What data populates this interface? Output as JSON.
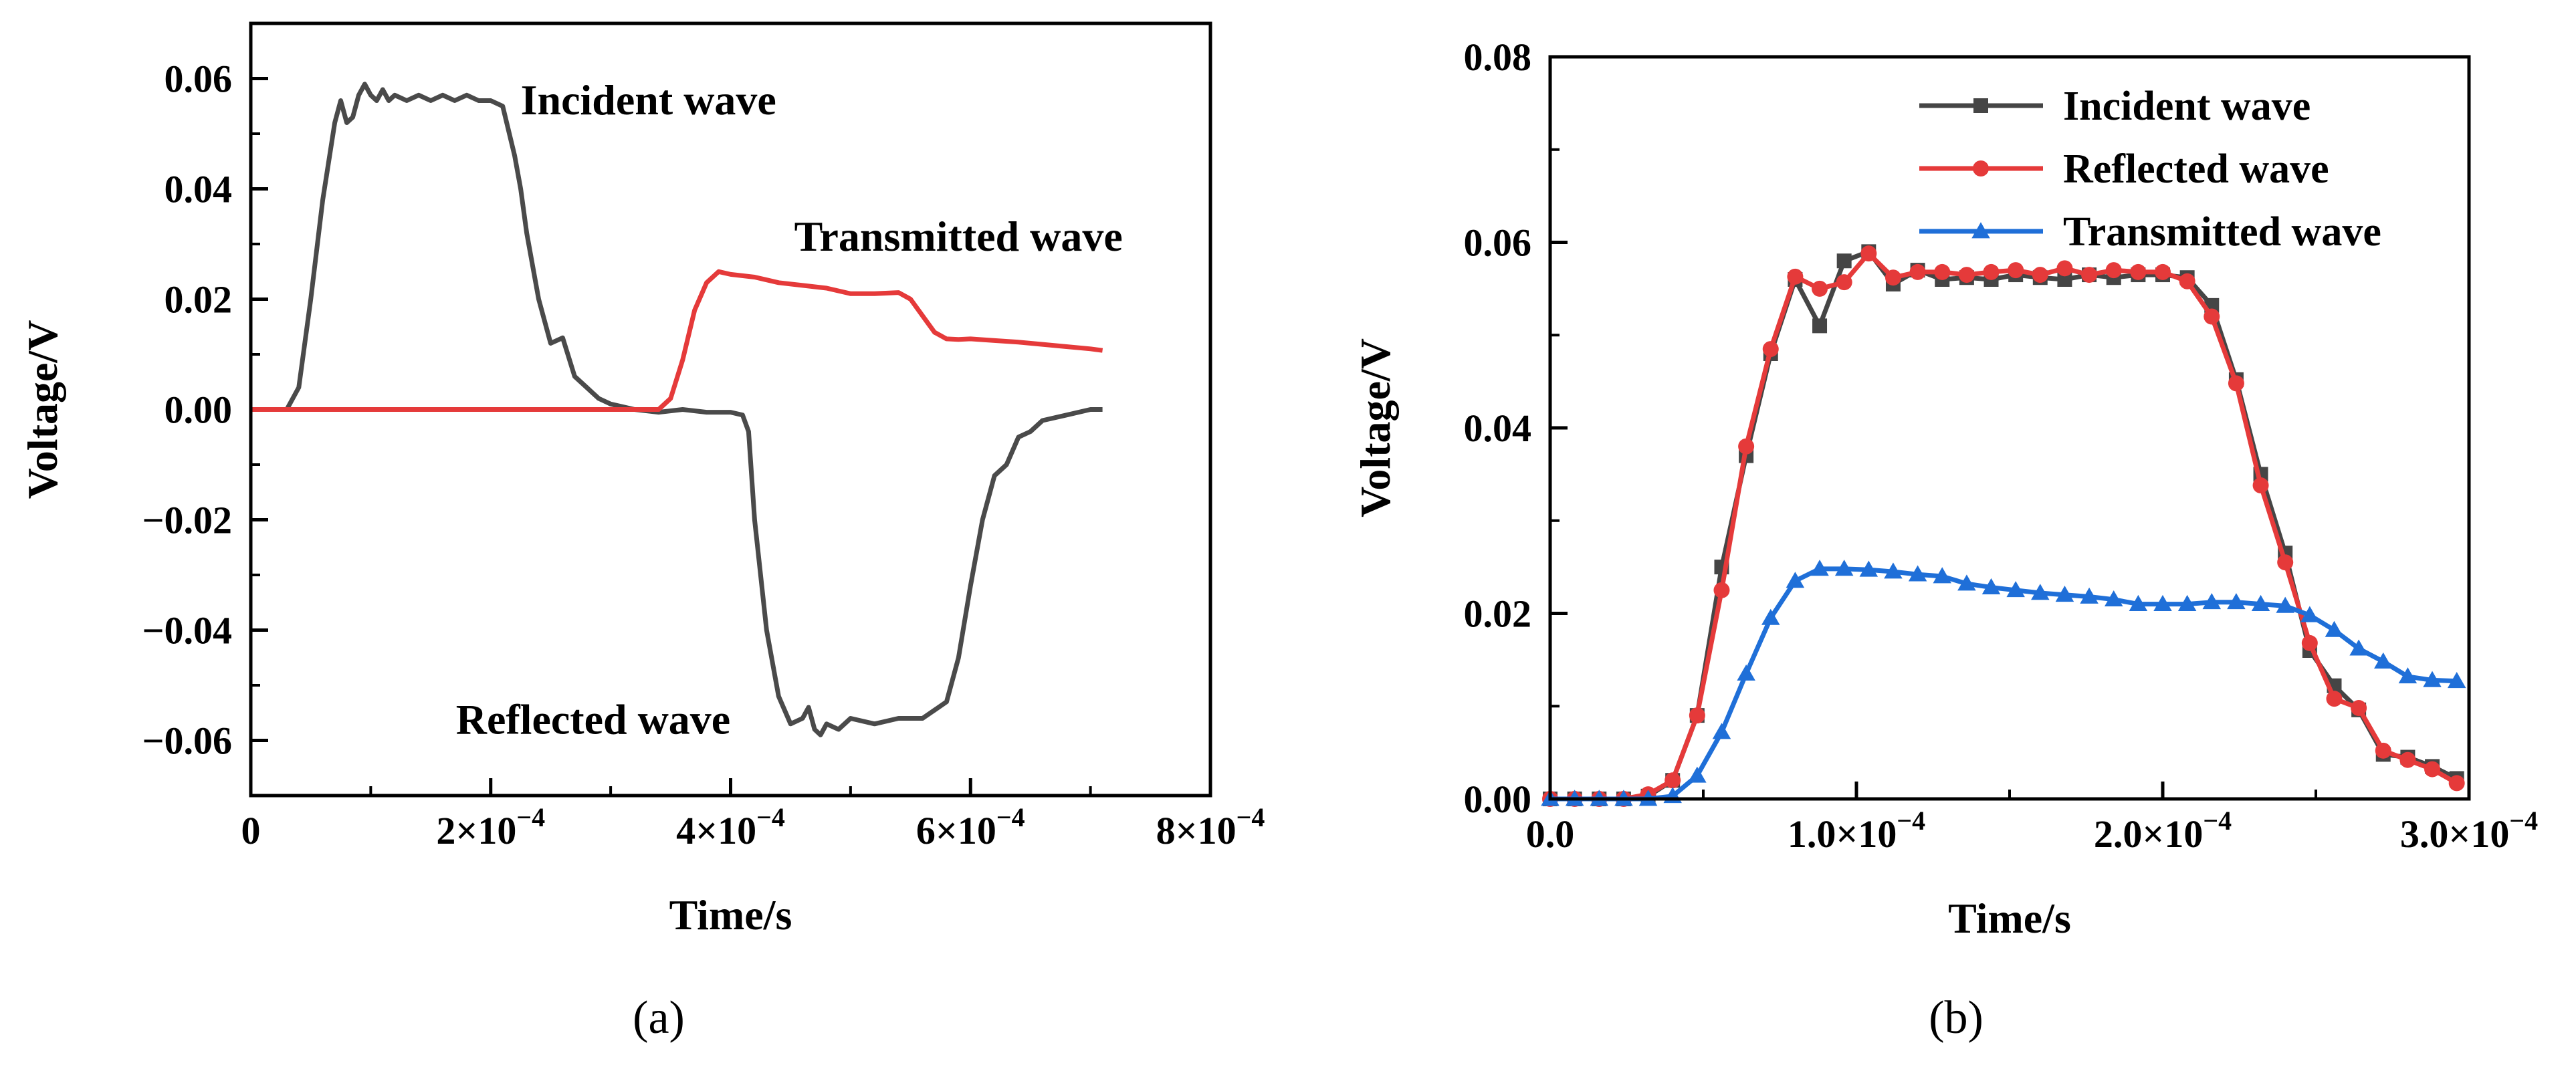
{
  "chart_data": [
    {
      "panel": "(a)",
      "type": "line",
      "xlabel": "Time/s",
      "ylabel": "Voltage/V",
      "xlim": [
        0,
        0.0008
      ],
      "ylim": [
        -0.07,
        0.07
      ],
      "x_ticks": [
        {
          "v": 0,
          "label": "0"
        },
        {
          "v": 0.0002,
          "label": "2×10",
          "exp": "−4"
        },
        {
          "v": 0.0004,
          "label": "4×10",
          "exp": "−4"
        },
        {
          "v": 0.0006,
          "label": "6×10",
          "exp": "−4"
        },
        {
          "v": 0.0008,
          "label": "8×10",
          "exp": "−4"
        }
      ],
      "y_ticks": [
        {
          "v": 0.06,
          "label": "0.06"
        },
        {
          "v": 0.04,
          "label": "0.04"
        },
        {
          "v": 0.02,
          "label": "0.02"
        },
        {
          "v": 0.0,
          "label": "0.00"
        },
        {
          "v": -0.02,
          "label": "−0.02"
        },
        {
          "v": -0.04,
          "label": "−0.04"
        },
        {
          "v": -0.06,
          "label": "−0.06"
        }
      ],
      "series": [
        {
          "name": "Incident wave",
          "color": "#4a4a4a",
          "x": [
            0,
            3e-05,
            4e-05,
            5e-05,
            6e-05,
            7e-05,
            7.5e-05,
            8e-05,
            8.5e-05,
            9e-05,
            9.5e-05,
            0.0001,
            0.000105,
            0.00011,
            0.000115,
            0.00012,
            0.00013,
            0.00014,
            0.00015,
            0.00016,
            0.00017,
            0.00018,
            0.00019,
            0.0002,
            0.00021,
            0.00022,
            0.000225,
            0.00023,
            0.00024,
            0.00025,
            0.00026,
            0.00027,
            0.00028,
            0.00029,
            0.0003,
            0.00031,
            0.00032,
            0.00034,
            0.00036,
            0.00038,
            0.0004,
            0.00041,
            0.000415,
            0.00042,
            0.00043,
            0.00044,
            0.00045,
            0.00046,
            0.000465,
            0.00047,
            0.000475,
            0.00048,
            0.00049,
            0.0005,
            0.00052,
            0.00054,
            0.00056,
            0.00058,
            0.00059,
            0.0006,
            0.00061,
            0.00062,
            0.00063,
            0.00064,
            0.00065,
            0.00066,
            0.00068,
            0.0007,
            0.00071
          ],
          "y": [
            0,
            0,
            0.004,
            0.02,
            0.038,
            0.052,
            0.056,
            0.052,
            0.053,
            0.057,
            0.059,
            0.057,
            0.056,
            0.058,
            0.056,
            0.057,
            0.056,
            0.057,
            0.056,
            0.057,
            0.056,
            0.057,
            0.056,
            0.056,
            0.055,
            0.046,
            0.04,
            0.032,
            0.02,
            0.012,
            0.013,
            0.006,
            0.004,
            0.002,
            0.001,
            0.0005,
            0,
            -0.0005,
            0,
            -0.0005,
            -0.0005,
            -0.001,
            -0.004,
            -0.02,
            -0.04,
            -0.052,
            -0.057,
            -0.056,
            -0.054,
            -0.058,
            -0.059,
            -0.057,
            -0.058,
            -0.056,
            -0.057,
            -0.056,
            -0.056,
            -0.053,
            -0.045,
            -0.032,
            -0.02,
            -0.012,
            -0.01,
            -0.005,
            -0.004,
            -0.002,
            -0.001,
            0,
            0
          ]
        },
        {
          "name": "Transmitted wave",
          "color": "#e53a3a",
          "x": [
            0,
            0.0001,
            0.0002,
            0.0003,
            0.00034,
            0.00035,
            0.00036,
            0.00037,
            0.00038,
            0.00039,
            0.0004,
            0.00042,
            0.00044,
            0.00046,
            0.00048,
            0.0005,
            0.00052,
            0.00054,
            0.00055,
            0.00056,
            0.00057,
            0.00058,
            0.00059,
            0.0006,
            0.00062,
            0.00064,
            0.00066,
            0.00068,
            0.0007,
            0.00071
          ],
          "y": [
            0,
            0,
            0,
            0,
            0,
            0.002,
            0.009,
            0.018,
            0.023,
            0.025,
            0.0245,
            0.024,
            0.023,
            0.0225,
            0.022,
            0.021,
            0.021,
            0.0212,
            0.02,
            0.017,
            0.014,
            0.0128,
            0.0127,
            0.0128,
            0.0125,
            0.0122,
            0.0118,
            0.0114,
            0.011,
            0.0107
          ]
        }
      ],
      "annotations": [
        {
          "text": "Incident wave",
          "x": 0.000225,
          "y": 0.0535
        },
        {
          "text": "Transmitted wave",
          "x": 0.000453,
          "y": 0.0288
        },
        {
          "text": "Reflected wave",
          "x": 0.000171,
          "y": -0.0588
        }
      ]
    },
    {
      "panel": "(b)",
      "type": "line",
      "xlabel": "Time/s",
      "ylabel": "Voltage/V",
      "xlim": [
        0,
        0.0003
      ],
      "ylim": [
        0,
        0.08
      ],
      "x_ticks": [
        {
          "v": 0,
          "label": "0.0"
        },
        {
          "v": 0.0001,
          "label": "1.0×10",
          "exp": "−4"
        },
        {
          "v": 0.0002,
          "label": "2.0×10",
          "exp": "−4"
        },
        {
          "v": 0.0003,
          "label": "3.0×10",
          "exp": "−4"
        }
      ],
      "y_ticks": [
        {
          "v": 0.0,
          "label": "0.00"
        },
        {
          "v": 0.02,
          "label": "0.02"
        },
        {
          "v": 0.04,
          "label": "0.04"
        },
        {
          "v": 0.06,
          "label": "0.06"
        },
        {
          "v": 0.08,
          "label": "0.08"
        }
      ],
      "legend": "top-right",
      "series": [
        {
          "name": "Incident wave",
          "color": "#454545",
          "marker": "square",
          "x": [
            0,
            8e-06,
            1.6e-05,
            2.4e-05,
            3.2e-05,
            4e-05,
            4.8e-05,
            5.6e-05,
            6.4e-05,
            7.2e-05,
            8e-05,
            8.8e-05,
            9.6e-05,
            0.000104,
            0.000112,
            0.00012,
            0.000128,
            0.000136,
            0.000144,
            0.000152,
            0.00016,
            0.000168,
            0.000176,
            0.000184,
            0.000192,
            0.0002,
            0.000208,
            0.000216,
            0.000224,
            0.000232,
            0.00024,
            0.000248,
            0.000256,
            0.000264,
            0.000272,
            0.00028,
            0.000288,
            0.000296
          ],
          "y": [
            0,
            0,
            0,
            0,
            0.0003,
            0.002,
            0.009,
            0.025,
            0.037,
            0.048,
            0.056,
            0.051,
            0.058,
            0.059,
            0.0555,
            0.057,
            0.056,
            0.0562,
            0.056,
            0.0565,
            0.0562,
            0.056,
            0.0565,
            0.0562,
            0.0565,
            0.0565,
            0.0562,
            0.0532,
            0.0452,
            0.035,
            0.0265,
            0.016,
            0.0122,
            0.0096,
            0.0048,
            0.0045,
            0.0035,
            0.0022
          ]
        },
        {
          "name": "Reflected wave",
          "color": "#e53a3a",
          "marker": "circle",
          "x": [
            0,
            8e-06,
            1.6e-05,
            2.4e-05,
            3.2e-05,
            4e-05,
            4.8e-05,
            5.6e-05,
            6.4e-05,
            7.2e-05,
            8e-05,
            8.8e-05,
            9.6e-05,
            0.000104,
            0.000112,
            0.00012,
            0.000128,
            0.000136,
            0.000144,
            0.000152,
            0.00016,
            0.000168,
            0.000176,
            0.000184,
            0.000192,
            0.0002,
            0.000208,
            0.000216,
            0.000224,
            0.000232,
            0.00024,
            0.000248,
            0.000256,
            0.000264,
            0.000272,
            0.00028,
            0.000288,
            0.000296
          ],
          "y": [
            0,
            0,
            0,
            0,
            0.0005,
            0.002,
            0.009,
            0.0225,
            0.038,
            0.0485,
            0.0563,
            0.055,
            0.0557,
            0.0588,
            0.0562,
            0.0568,
            0.0568,
            0.0565,
            0.0568,
            0.057,
            0.0565,
            0.0572,
            0.0565,
            0.057,
            0.0568,
            0.0568,
            0.0558,
            0.052,
            0.0448,
            0.0338,
            0.0255,
            0.0168,
            0.0108,
            0.0098,
            0.0052,
            0.0042,
            0.0032,
            0.0017
          ]
        },
        {
          "name": "Transmitted wave",
          "color": "#1f6fd8",
          "marker": "triangle",
          "x": [
            0,
            8e-06,
            1.6e-05,
            2.4e-05,
            3.2e-05,
            4e-05,
            4.8e-05,
            5.6e-05,
            6.4e-05,
            7.2e-05,
            8e-05,
            8.8e-05,
            9.6e-05,
            0.000104,
            0.000112,
            0.00012,
            0.000128,
            0.000136,
            0.000144,
            0.000152,
            0.00016,
            0.000168,
            0.000176,
            0.000184,
            0.000192,
            0.0002,
            0.000208,
            0.000216,
            0.000224,
            0.000232,
            0.00024,
            0.000248,
            0.000256,
            0.000264,
            0.000272,
            0.00028,
            0.000288,
            0.000296
          ],
          "y": [
            0,
            0,
            0,
            0,
            0,
            0.0003,
            0.0025,
            0.0072,
            0.0135,
            0.0195,
            0.0235,
            0.0248,
            0.0248,
            0.0247,
            0.0245,
            0.0242,
            0.024,
            0.0232,
            0.0228,
            0.0225,
            0.0222,
            0.022,
            0.0218,
            0.0215,
            0.021,
            0.021,
            0.021,
            0.0212,
            0.0212,
            0.021,
            0.0208,
            0.0198,
            0.0182,
            0.0162,
            0.0148,
            0.0132,
            0.0128,
            0.0127
          ]
        }
      ]
    }
  ]
}
